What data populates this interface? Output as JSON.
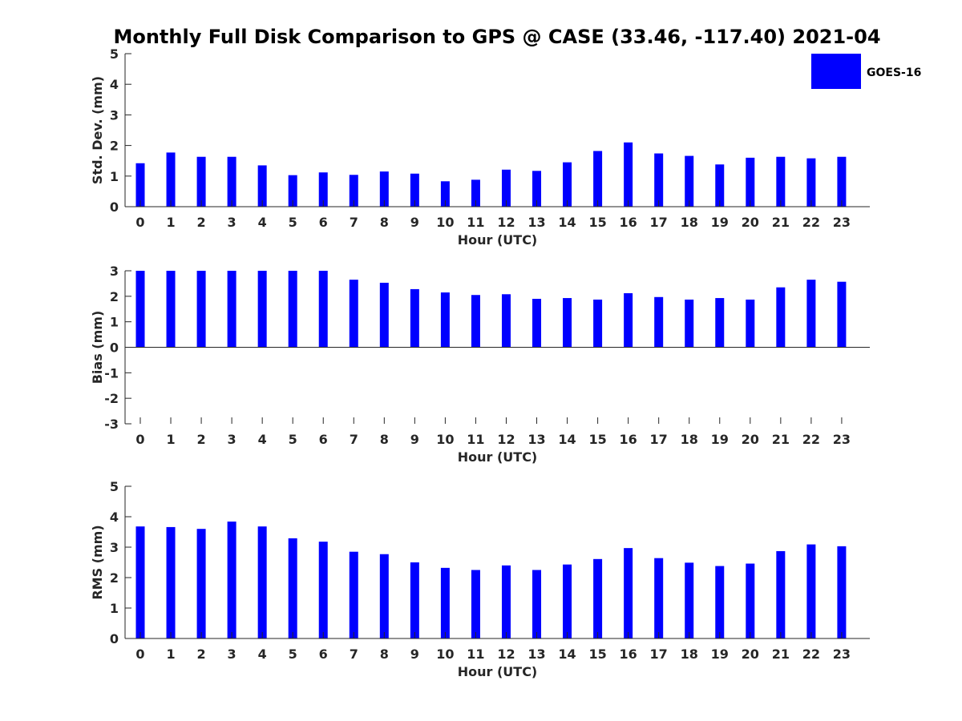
{
  "chart_data": {
    "type": "bar",
    "title": "Monthly Full Disk Comparison to GPS @ CASE (33.46, -117.40) 2021-04",
    "legend": {
      "label": "GOES-16",
      "color": "#0000ff",
      "position": "top-right"
    },
    "categories": [
      "0",
      "1",
      "2",
      "3",
      "4",
      "5",
      "6",
      "7",
      "8",
      "9",
      "10",
      "11",
      "12",
      "13",
      "14",
      "15",
      "16",
      "17",
      "18",
      "19",
      "20",
      "21",
      "22",
      "23"
    ],
    "panels": [
      {
        "name": "std-dev",
        "ylabel": "Std. Dev. (mm)",
        "xlabel": "Hour (UTC)",
        "ylim": [
          0,
          5
        ],
        "yticks": [
          "0",
          "1",
          "2",
          "3",
          "4",
          "5"
        ],
        "series": [
          {
            "name": "GOES-16",
            "values": [
              1.42,
              1.77,
              1.63,
              1.63,
              1.35,
              1.03,
              1.12,
              1.04,
              1.15,
              1.08,
              0.83,
              0.88,
              1.21,
              1.17,
              1.45,
              1.82,
              2.1,
              1.74,
              1.66,
              1.38,
              1.6,
              1.63,
              1.58,
              1.63
            ]
          }
        ]
      },
      {
        "name": "bias",
        "ylabel": "Bias (mm)",
        "xlabel": "Hour (UTC)",
        "ylim": [
          -3,
          3
        ],
        "yticks": [
          "-3",
          "-2",
          "-1",
          "0",
          "1",
          "2",
          "3"
        ],
        "series": [
          {
            "name": "GOES-16",
            "values": [
              3.0,
              3.0,
              3.0,
              3.0,
              3.0,
              3.0,
              3.0,
              2.65,
              2.53,
              2.28,
              2.15,
              2.05,
              2.08,
              1.9,
              1.93,
              1.87,
              2.12,
              1.97,
              1.87,
              1.93,
              1.87,
              2.35,
              2.65,
              2.57
            ]
          }
        ]
      },
      {
        "name": "rms",
        "ylabel": "RMS (mm)",
        "xlabel": "Hour (UTC)",
        "ylim": [
          0,
          5
        ],
        "yticks": [
          "0",
          "1",
          "2",
          "3",
          "4",
          "5"
        ],
        "series": [
          {
            "name": "GOES-16",
            "values": [
              3.68,
              3.66,
              3.6,
              3.84,
              3.68,
              3.29,
              3.18,
              2.85,
              2.77,
              2.5,
              2.32,
              2.25,
              2.4,
              2.25,
              2.43,
              2.61,
              2.97,
              2.64,
              2.49,
              2.38,
              2.46,
              2.87,
              3.09,
              3.03
            ]
          }
        ]
      }
    ]
  }
}
